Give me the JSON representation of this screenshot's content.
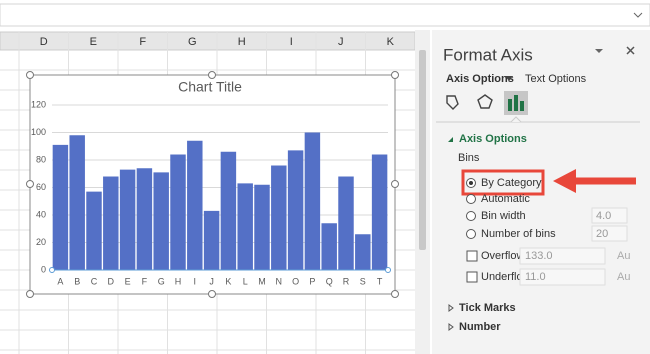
{
  "sheet": {
    "columns": [
      "D",
      "E",
      "F",
      "G",
      "H",
      "I",
      "J",
      "K"
    ]
  },
  "chart_data": {
    "type": "bar",
    "title": "Chart Title",
    "categories": [
      "A",
      "B",
      "C",
      "D",
      "E",
      "F",
      "G",
      "H",
      "I",
      "J",
      "K",
      "L",
      "M",
      "N",
      "O",
      "P",
      "Q",
      "R",
      "S",
      "T"
    ],
    "values": [
      91,
      98,
      57,
      68,
      73,
      74,
      71,
      84,
      94,
      43,
      86,
      63,
      62,
      76,
      87,
      100,
      34,
      68,
      26,
      84
    ],
    "color": "#5470c6",
    "ylim": [
      0,
      120
    ],
    "yticks": [
      0,
      20,
      40,
      60,
      80,
      100,
      120
    ],
    "grid": true
  },
  "panel": {
    "title": "Format Axis",
    "tabs": [
      "Axis Options",
      "Text Options"
    ],
    "section": "Axis Options",
    "bins_label": "Bins",
    "options": [
      "By Category",
      "Automatic",
      "Bin width",
      "Number of bins"
    ],
    "bin_width": "4.0",
    "number_of_bins": "20",
    "overflow": {
      "label": "Overflow bin",
      "value": "133.0",
      "auto": "Au"
    },
    "underflow": {
      "label": "Underflow bin",
      "value": "11.0",
      "auto": "Au"
    },
    "collapsed": [
      "Tick Marks",
      "Number"
    ]
  }
}
